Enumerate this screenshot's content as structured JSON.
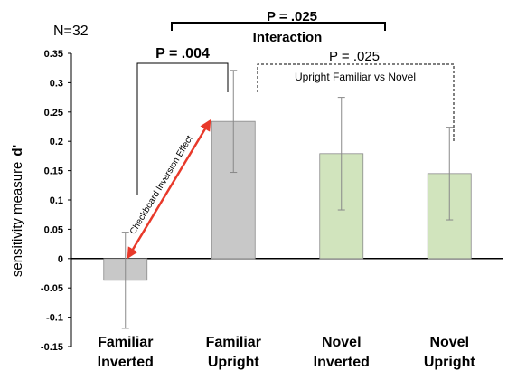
{
  "chart_data": {
    "type": "bar",
    "n_label": "N=32",
    "ylabel": "sensitivity measure",
    "ylabel_symbol": "d'",
    "ylim": [
      -0.15,
      0.35
    ],
    "yticks": [
      "-0.15",
      "-0.1",
      "-0.05",
      "0",
      "0.05",
      "0.1",
      "0.15",
      "0.2",
      "0.25",
      "0.3",
      "0.35"
    ],
    "categories": [
      {
        "line1": "Familiar",
        "line2": "Inverted"
      },
      {
        "line1": "Familiar",
        "line2": "Upright"
      },
      {
        "line1": "Novel",
        "line2": "Inverted"
      },
      {
        "line1": "Novel",
        "line2": "Upright"
      }
    ],
    "values": [
      -0.037,
      0.234,
      0.179,
      0.145
    ],
    "errors": [
      0.082,
      0.087,
      0.096,
      0.079
    ],
    "colors": [
      "#c8c8c8",
      "#c8c8c8",
      "#d1e4bd",
      "#d1e4bd"
    ],
    "annotations": {
      "p_interaction": "P = .025",
      "interaction": "Interaction",
      "p_familiar": "P = .004",
      "p_upright": "P = .025",
      "upright_label": "Upright Familiar vs Novel",
      "arrow_label": "Checkboard Inversion Effect",
      "arrow_color": "#e8392a"
    }
  }
}
